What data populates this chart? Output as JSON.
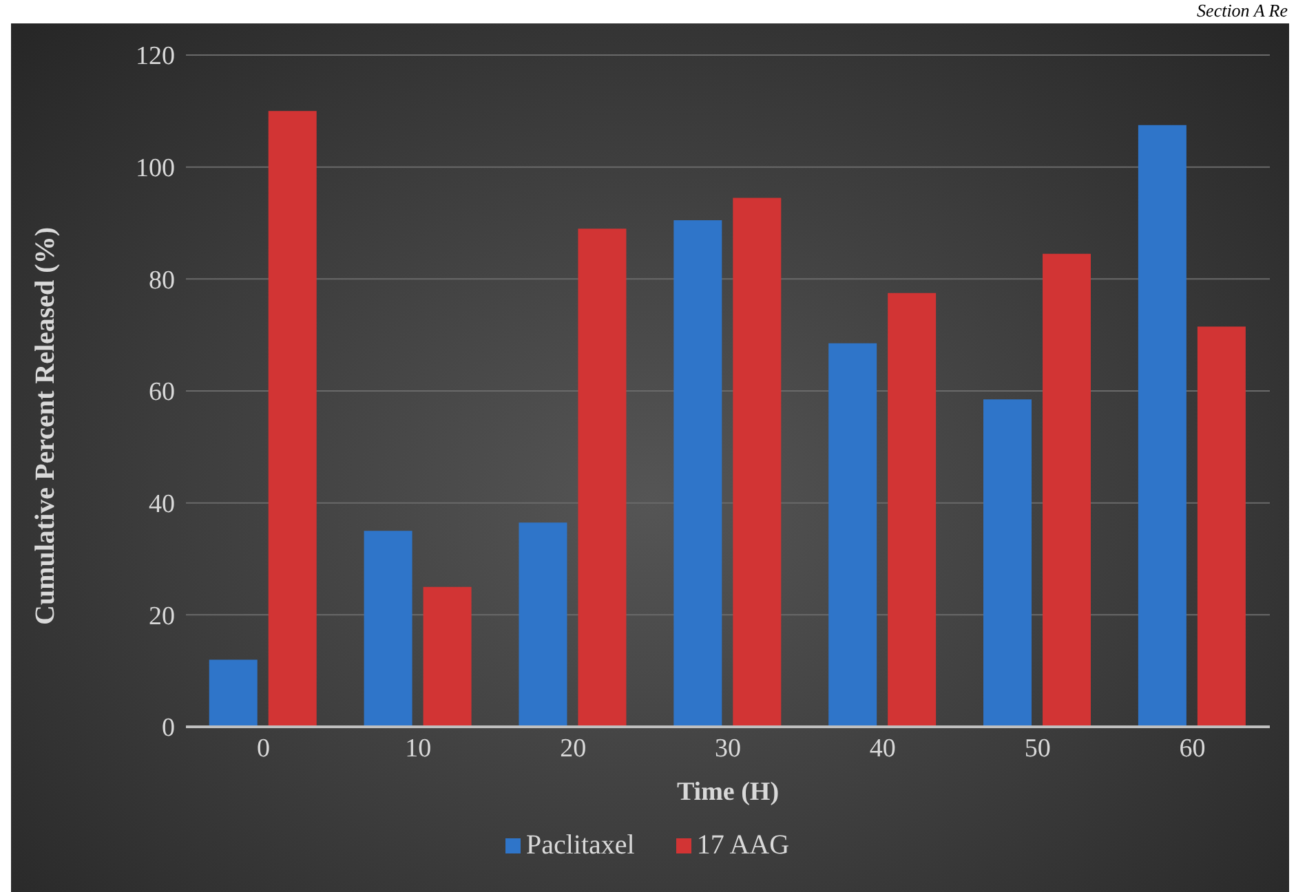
{
  "chart_data": {
    "type": "bar",
    "xlabel": "Time (H)",
    "ylabel": "Cumulative Percent Released (%)",
    "annotations": [
      "Section A Re"
    ],
    "categories": [
      "0",
      "10",
      "20",
      "30",
      "40",
      "50",
      "60"
    ],
    "series": [
      {
        "name": "Paclitaxel",
        "color": "#2f75c9",
        "values": [
          12,
          35,
          36.5,
          90.5,
          68.5,
          58.5,
          107.5
        ]
      },
      {
        "name": "17 AAG",
        "color": "#d23434",
        "values": [
          110,
          25,
          89,
          94.5,
          77.5,
          84.5,
          71.5
        ]
      }
    ],
    "ylim": [
      0,
      120
    ],
    "yticks": [
      0,
      20,
      40,
      60,
      80,
      100,
      120
    ],
    "grid": "y",
    "legend": "bottom"
  }
}
